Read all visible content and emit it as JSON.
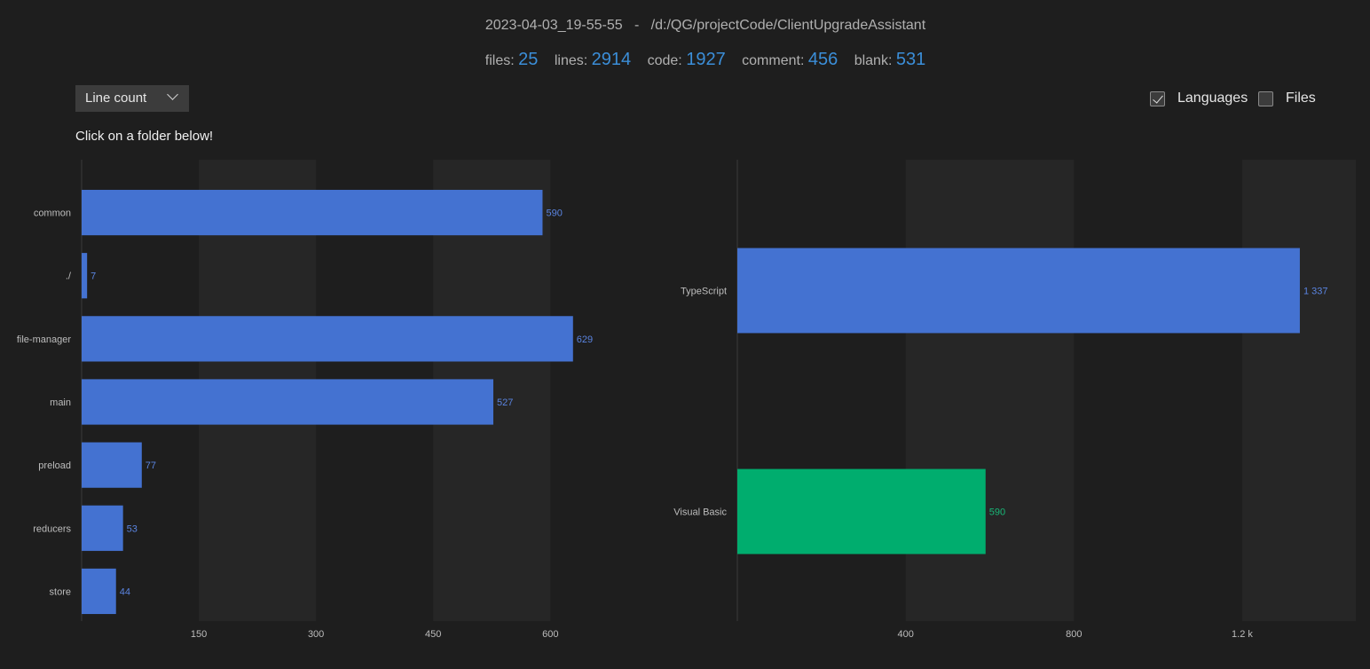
{
  "header": {
    "timestamp": "2023-04-03_19-55-55",
    "separator": "-",
    "path": "/d:/QG/projectCode/ClientUpgradeAssistant"
  },
  "stats": [
    {
      "label": "files:",
      "value": "25"
    },
    {
      "label": "lines:",
      "value": "2914"
    },
    {
      "label": "code:",
      "value": "1927"
    },
    {
      "label": "comment:",
      "value": "456"
    },
    {
      "label": "blank:",
      "value": "531"
    }
  ],
  "controls": {
    "metric_dropdown": "Line count",
    "toggles": [
      {
        "label": "Languages",
        "checked": true
      },
      {
        "label": "Files",
        "checked": false
      }
    ],
    "hint": "Click on a folder below!"
  },
  "colors": {
    "bar_blue": "#4472d1",
    "bar_green": "#00ad6e",
    "value_blue": "#5a84e0",
    "value_green": "#18b777",
    "stripe": "#262626",
    "background": "#1e1e1e"
  },
  "chart_data": [
    {
      "type": "bar",
      "orientation": "horizontal",
      "categories": [
        "common",
        "./",
        "file-manager",
        "main",
        "preload",
        "reducers",
        "store"
      ],
      "values": [
        590,
        7,
        629,
        527,
        77,
        53,
        44
      ],
      "value_labels": [
        "590",
        "7",
        "629",
        "527",
        "77",
        "53",
        "44"
      ],
      "xlim": [
        0,
        736
      ],
      "xticks": [
        150,
        300,
        450,
        600
      ],
      "xtick_labels": [
        "150",
        "300",
        "450",
        "600"
      ],
      "title": "",
      "xlabel": "",
      "ylabel": ""
    },
    {
      "type": "bar",
      "orientation": "horizontal",
      "categories": [
        "TypeScript",
        "Visual Basic"
      ],
      "values": [
        1337,
        590
      ],
      "value_labels": [
        "1 337",
        "590"
      ],
      "bar_colors": [
        "#4472d1",
        "#00ad6e"
      ],
      "xlim": [
        0,
        1470
      ],
      "xticks": [
        400,
        800,
        1200
      ],
      "xtick_labels": [
        "400",
        "800",
        "1.2 k"
      ],
      "title": "",
      "xlabel": "",
      "ylabel": ""
    }
  ]
}
